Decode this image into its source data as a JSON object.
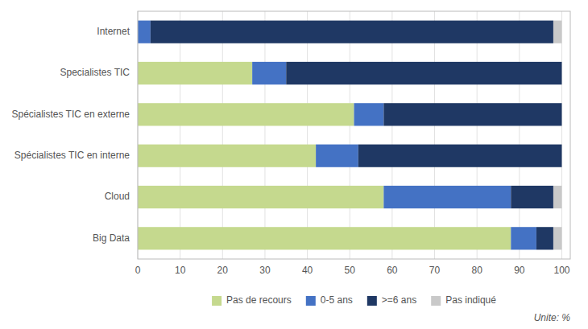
{
  "chart_data": {
    "type": "bar",
    "orientation": "horizontal",
    "stacked": true,
    "categories": [
      "Internet",
      "Specialistes TIC",
      "Spécialistes TIC en externe",
      "Spécialistes TIC en interne",
      "Cloud",
      "Big Data"
    ],
    "series": [
      {
        "name": "Pas de recours",
        "color": "#c5d98e",
        "values": [
          0,
          27,
          51,
          42,
          58,
          88
        ]
      },
      {
        "name": "0-5 ans",
        "color": "#4472c4",
        "values": [
          3,
          8,
          7,
          10,
          30,
          6
        ]
      },
      {
        "name": ">=6 ans",
        "color": "#1f3864",
        "values": [
          95,
          65,
          42,
          48,
          10,
          4
        ]
      },
      {
        "name": "Pas indiqué",
        "color": "#c9c9c9",
        "values": [
          2,
          0,
          0,
          0,
          2,
          2
        ]
      }
    ],
    "xlim": [
      0,
      102
    ],
    "xticks": [
      0,
      10,
      20,
      30,
      40,
      50,
      60,
      70,
      80,
      90,
      100
    ],
    "grid": true,
    "legend": "bottom",
    "annotation": "Unite: %"
  }
}
